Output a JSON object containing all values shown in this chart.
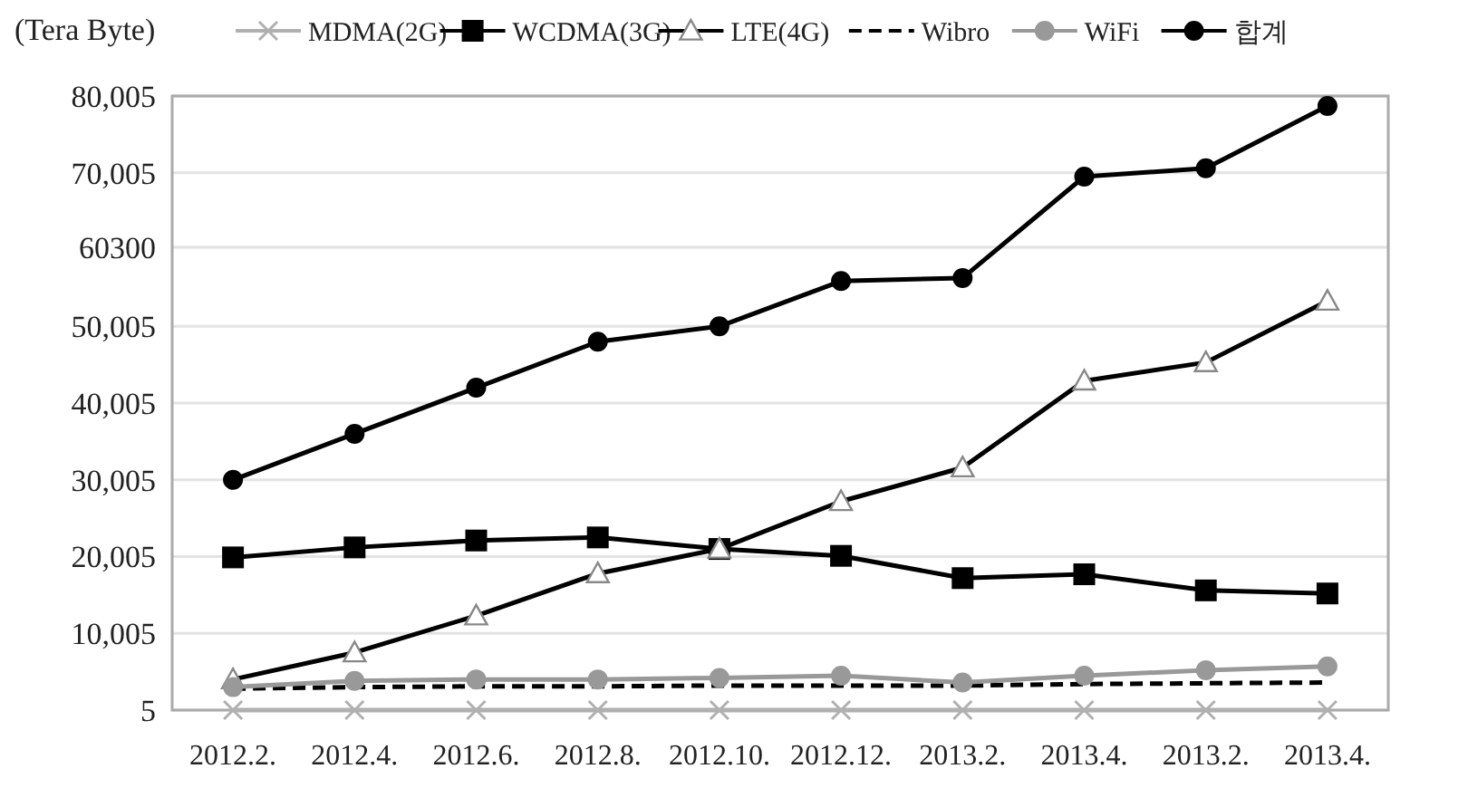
{
  "chart_data": {
    "type": "line",
    "ylabel": "(Tera Byte)",
    "categories": [
      "2012.2.",
      "2012.4.",
      "2012.6.",
      "2012.8.",
      "2012.10.",
      "2012.12.",
      "2013.2.",
      "2013.4.",
      "2013.2.",
      "2013.4."
    ],
    "ylim": [
      5,
      80005
    ],
    "yticks": [
      5,
      {
        "value": 10005,
        "label": "10,005"
      },
      {
        "value": 20005,
        "label": "20,005"
      },
      {
        "value": 30005,
        "label": "30,005"
      },
      {
        "value": 40005,
        "label": "40,005"
      },
      {
        "value": 50005,
        "label": "50,005"
      },
      60300,
      {
        "value": 70005,
        "label": "70,005"
      },
      {
        "value": 80005,
        "label": "80,005"
      }
    ],
    "grid": "y",
    "legend": "top right",
    "series": [
      {
        "name": "MDMA(2G)",
        "color": "#b0b0b0",
        "marker": "cross",
        "line_style": "solid",
        "values": [
          5,
          5,
          5,
          5,
          5,
          5,
          5,
          5,
          5,
          5
        ]
      },
      {
        "name": "WCDMA(3G)",
        "color": "#000000",
        "marker": "square",
        "line_style": "solid",
        "values": [
          19900,
          21200,
          22100,
          22500,
          21000,
          20100,
          17200,
          17700,
          15600,
          15200
        ]
      },
      {
        "name": "LTE(4G)",
        "color": "#000000",
        "marker": "triangle",
        "line_style": "solid",
        "values": [
          4000,
          7500,
          12300,
          17800,
          21000,
          27200,
          31600,
          42900,
          45300,
          53300
        ]
      },
      {
        "name": "Wibro",
        "color": "#000000",
        "marker": "none",
        "line_style": "dashed",
        "values": [
          2800,
          3000,
          3100,
          3100,
          3200,
          3200,
          3200,
          3400,
          3500,
          3600
        ]
      },
      {
        "name": "WiFi",
        "color": "#999999",
        "marker": "circle",
        "line_style": "solid",
        "values": [
          3000,
          3800,
          4000,
          4000,
          4200,
          4500,
          3600,
          4500,
          5200,
          5700
        ]
      },
      {
        "name": "합계",
        "color": "#000000",
        "marker": "circle",
        "line_style": "solid",
        "values": [
          30000,
          36000,
          42000,
          48000,
          50000,
          55900,
          56300,
          69500,
          70600,
          78700
        ]
      }
    ]
  }
}
